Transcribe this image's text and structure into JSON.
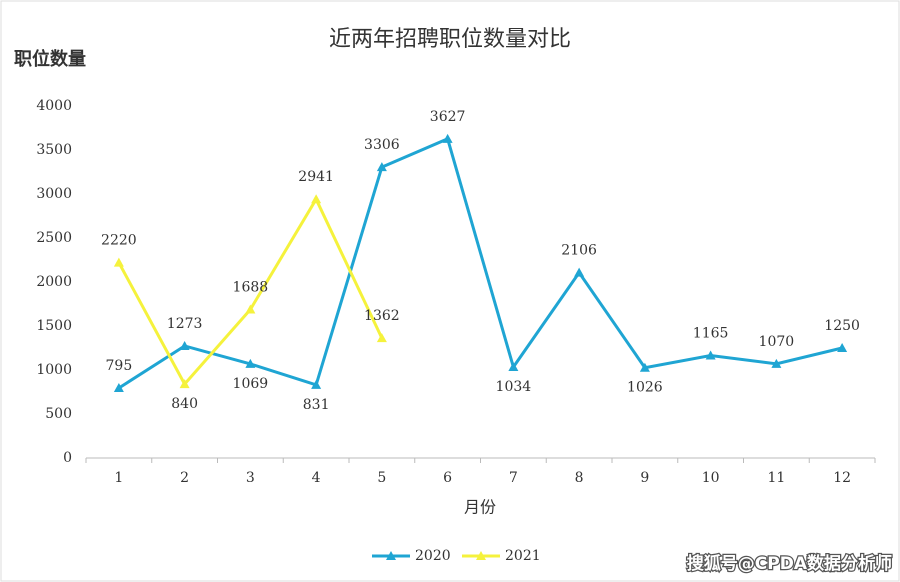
{
  "chart_data": {
    "type": "line",
    "title": "近两年招聘职位数量对比",
    "y_label": "职位数量",
    "x_label": "月份",
    "categories": [
      "1",
      "2",
      "3",
      "4",
      "5",
      "6",
      "7",
      "8",
      "9",
      "10",
      "11",
      "12"
    ],
    "series": [
      {
        "name": "2020",
        "color": "#1fa5d3",
        "values": [
          795,
          1273,
          1069,
          831,
          3306,
          3627,
          1034,
          2106,
          1026,
          1165,
          1070,
          1250
        ]
      },
      {
        "name": "2021",
        "color": "#f5f23c",
        "values": [
          2220,
          840,
          1688,
          2941,
          1362,
          null,
          null,
          null,
          null,
          null,
          null,
          null
        ]
      }
    ],
    "ylim": [
      0,
      4000
    ],
    "yticks": [
      0,
      500,
      1000,
      1500,
      2000,
      2500,
      3000,
      3500,
      4000
    ],
    "grid": false,
    "legend": "bottom",
    "watermark": "搜狐号@CPDA数据分析师"
  }
}
